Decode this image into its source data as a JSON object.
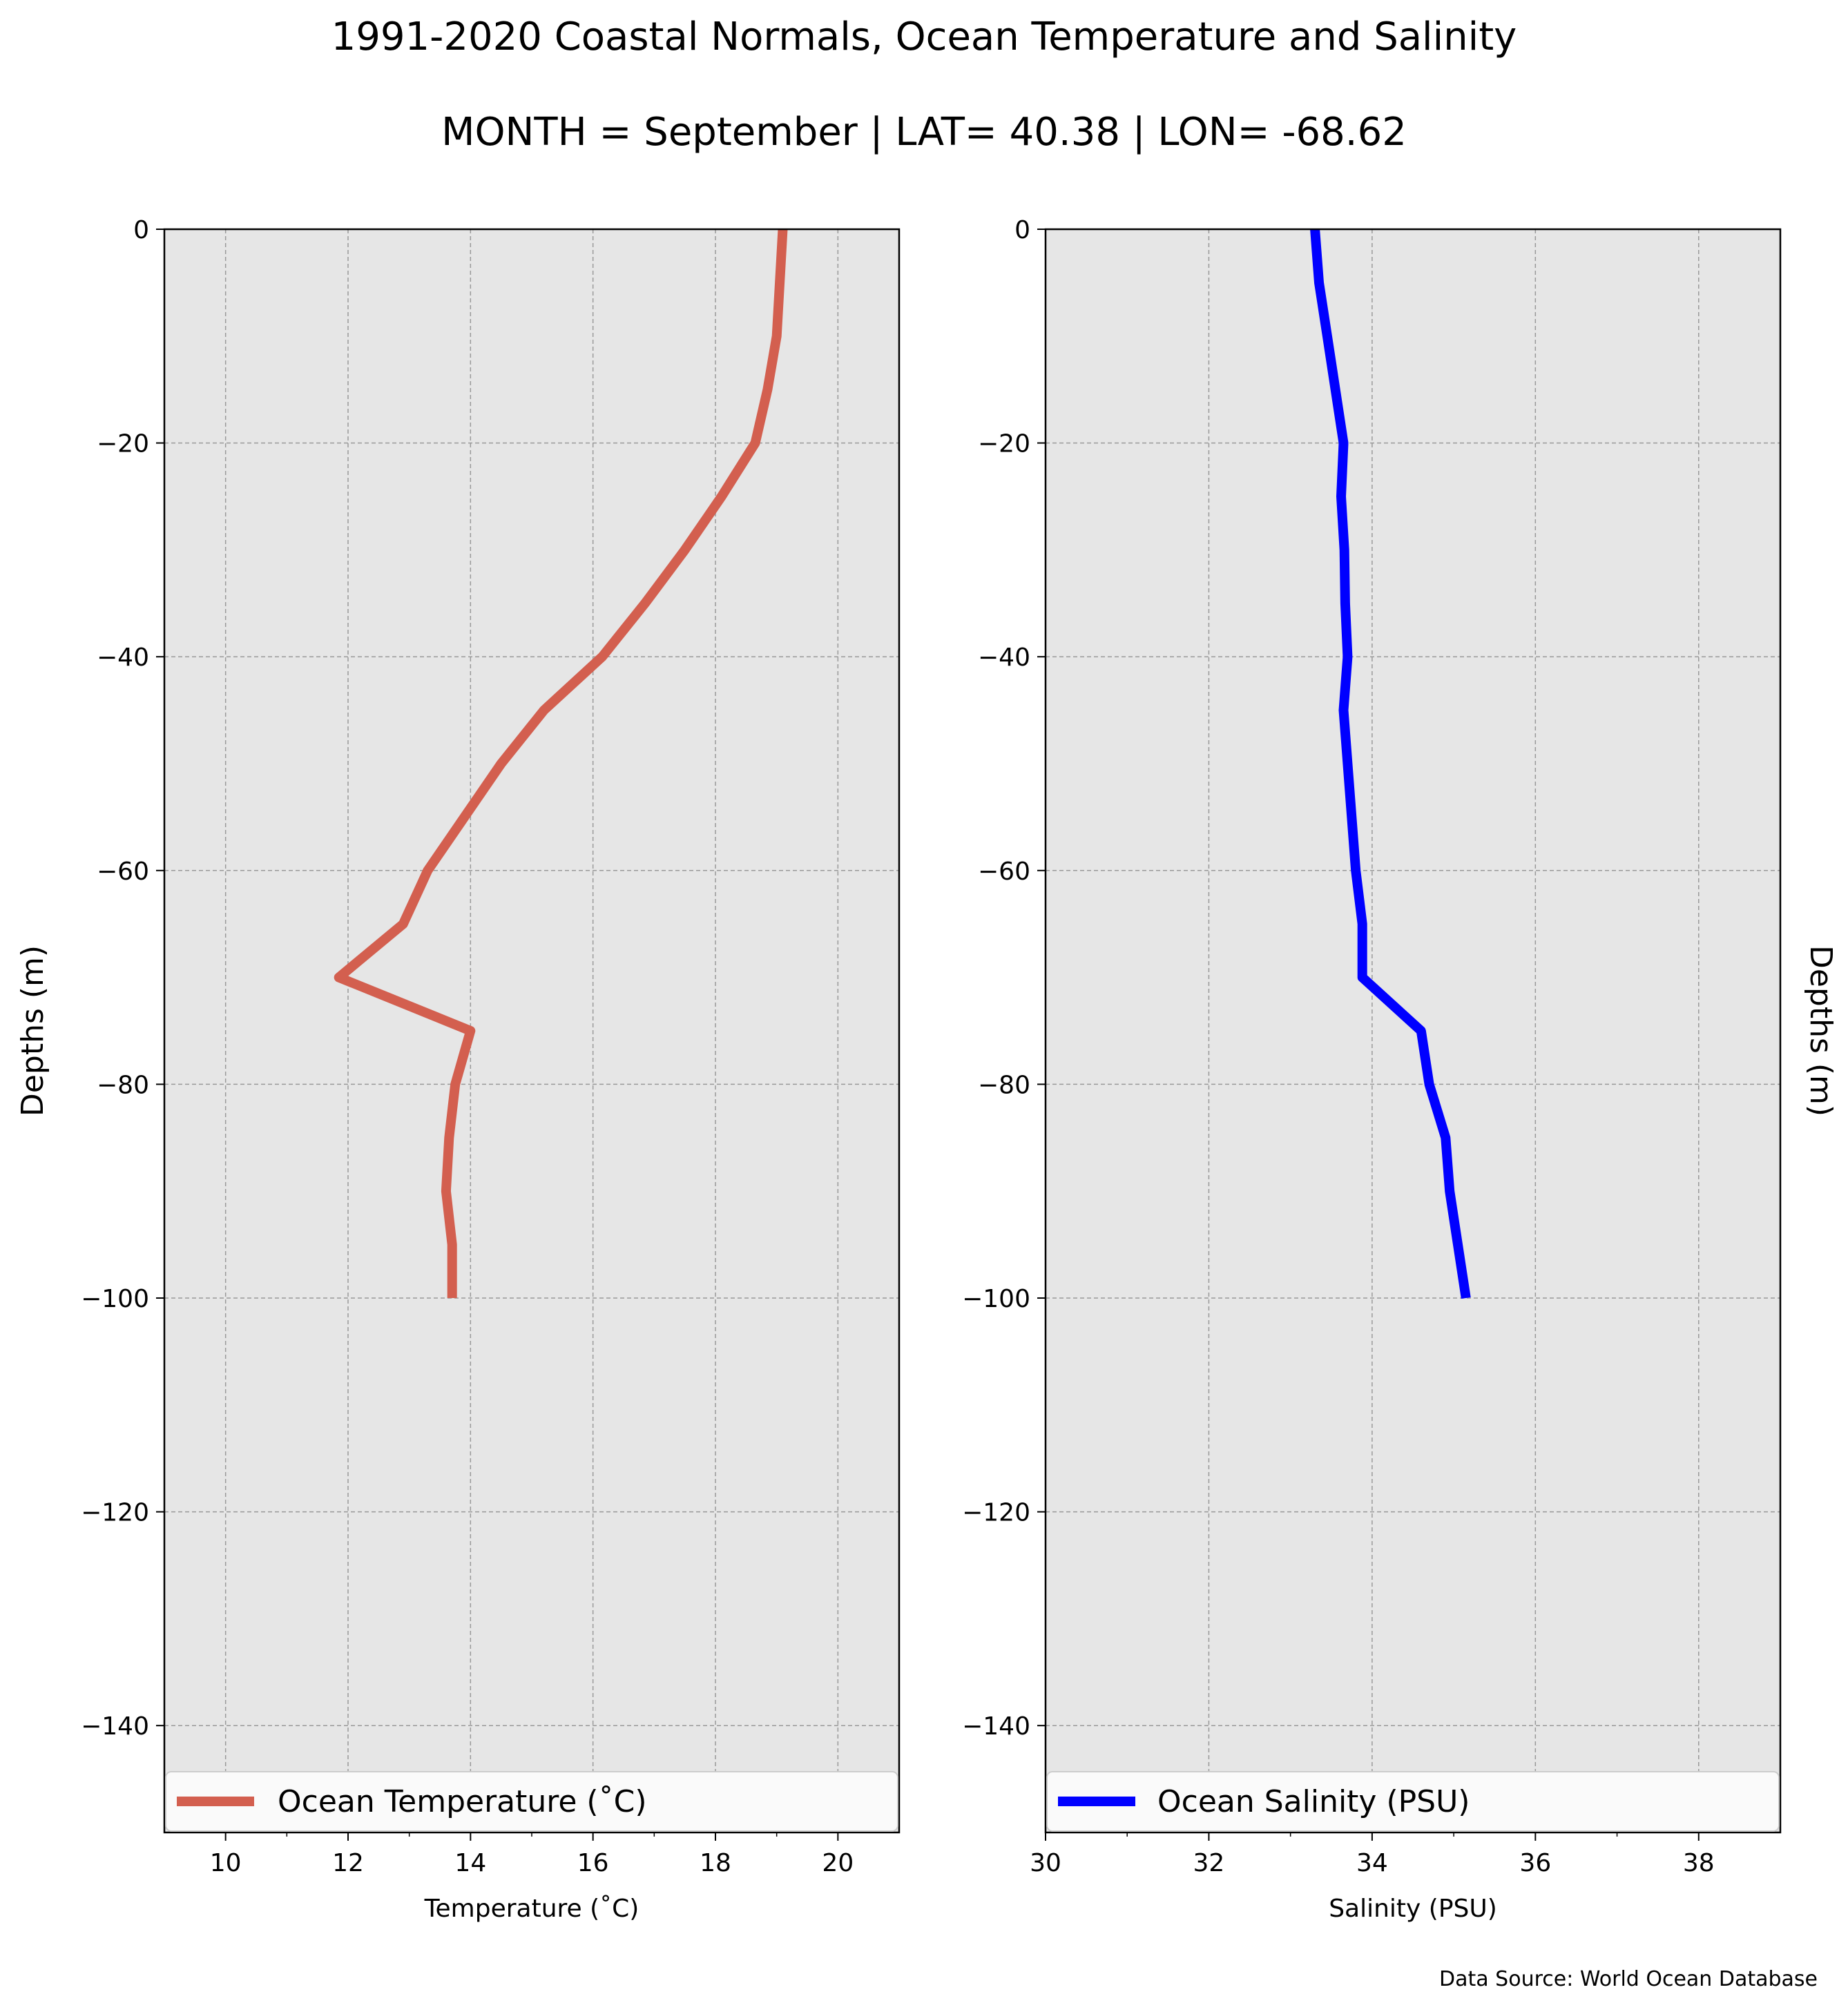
{
  "title": "1991-2020 Coastal Normals, Ocean Temperature and Salinity",
  "subtitle": "MONTH = September | LAT= 40.38 | LON= -68.62",
  "source_note": "Data Source: World Ocean Database",
  "colors": {
    "temperature": "#d35f4f",
    "salinity": "#0000ff",
    "plot_bg": "#e6e6e6",
    "grid": "#999999"
  },
  "chart_data": [
    {
      "type": "line",
      "xlabel": "Temperature ($^\\circ$C)",
      "xlabel_display": "Temperature (˚C)",
      "ylabel": "Depths (m)",
      "xlim": [
        9,
        21
      ],
      "ylim": [
        -150,
        0
      ],
      "xticks": [
        "10",
        "12",
        "14",
        "16",
        "18",
        "20"
      ],
      "xtick_values": [
        10,
        12,
        14,
        16,
        18,
        20
      ],
      "yticks": [
        "0",
        "−20",
        "−40",
        "−60",
        "−80",
        "−100",
        "−120",
        "−140"
      ],
      "ytick_values": [
        0,
        -20,
        -40,
        -60,
        -80,
        -100,
        -120,
        -140
      ],
      "grid": true,
      "legend_position": "lower-center",
      "series": [
        {
          "name": "Ocean Temperature (˚C)",
          "x": [
            19.1,
            19.05,
            19.0,
            18.85,
            18.65,
            18.1,
            17.5,
            16.85,
            16.15,
            15.2,
            14.5,
            13.9,
            13.3,
            12.9,
            11.85,
            14.0,
            13.75,
            13.65,
            13.6,
            13.7,
            13.7
          ],
          "y": [
            0,
            -5,
            -10,
            -15,
            -20,
            -25,
            -30,
            -35,
            -40,
            -45,
            -50,
            -55,
            -60,
            -65,
            -70,
            -75,
            -80,
            -85,
            -90,
            -95,
            -100
          ]
        }
      ]
    },
    {
      "type": "line",
      "xlabel": "Salinity (PSU)",
      "ylabel": "Depths (m)",
      "xlim": [
        30,
        39
      ],
      "ylim": [
        -150,
        0
      ],
      "xticks": [
        "30",
        "32",
        "34",
        "36",
        "38"
      ],
      "xtick_values": [
        30,
        32,
        34,
        36,
        38
      ],
      "yticks": [
        "0",
        "−20",
        "−40",
        "−60",
        "−80",
        "−100",
        "−120",
        "−140"
      ],
      "ytick_values": [
        0,
        -20,
        -40,
        -60,
        -80,
        -100,
        -120,
        -140
      ],
      "grid": true,
      "legend_position": "lower-center",
      "series": [
        {
          "name": "Ocean Salinity (PSU)",
          "x": [
            33.3,
            33.35,
            33.45,
            33.55,
            33.65,
            33.62,
            33.66,
            33.67,
            33.7,
            33.65,
            33.7,
            33.75,
            33.8,
            33.88,
            33.88,
            34.6,
            34.7,
            34.9,
            34.95,
            35.05,
            35.15
          ],
          "y": [
            0,
            -5,
            -10,
            -15,
            -20,
            -25,
            -30,
            -35,
            -40,
            -45,
            -50,
            -55,
            -60,
            -65,
            -70,
            -75,
            -80,
            -85,
            -90,
            -95,
            -100
          ]
        }
      ]
    }
  ]
}
